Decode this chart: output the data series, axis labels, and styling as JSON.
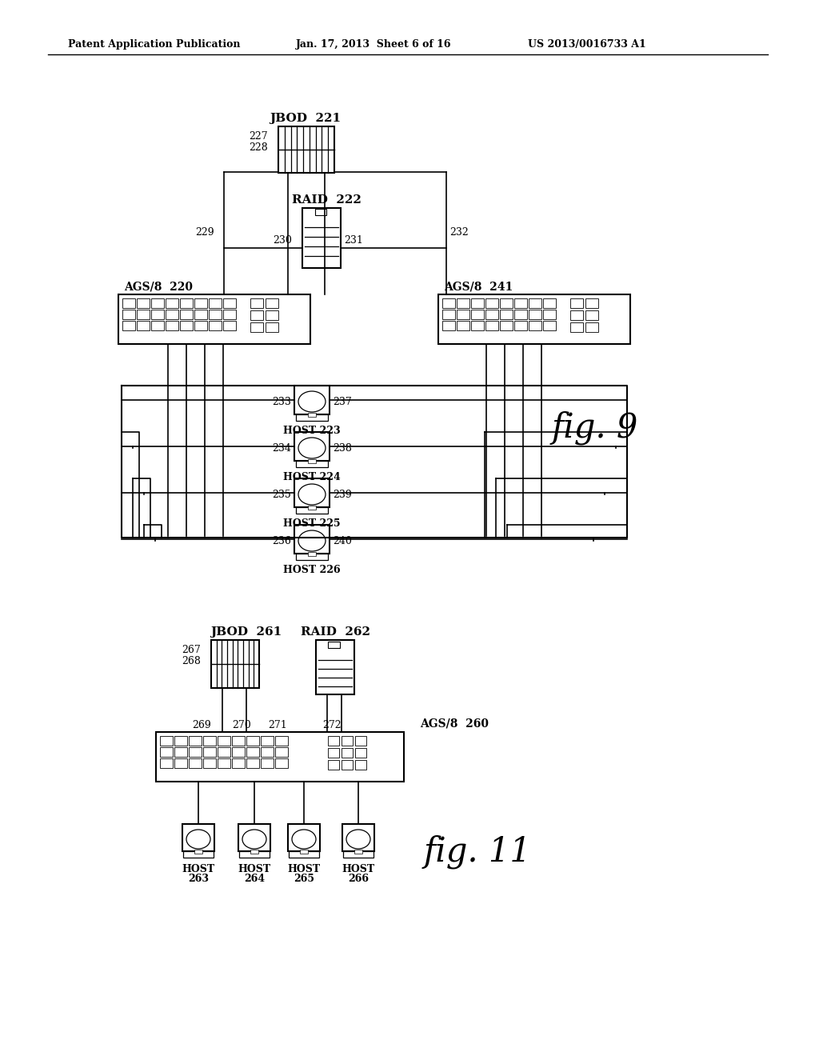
{
  "bg_color": "#ffffff",
  "header_left": "Patent Application Publication",
  "header_mid": "Jan. 17, 2013  Sheet 6 of 16",
  "header_right": "US 2013/0016733 A1",
  "fig9_label": "fig. 9",
  "fig11_label": "fig. 11"
}
